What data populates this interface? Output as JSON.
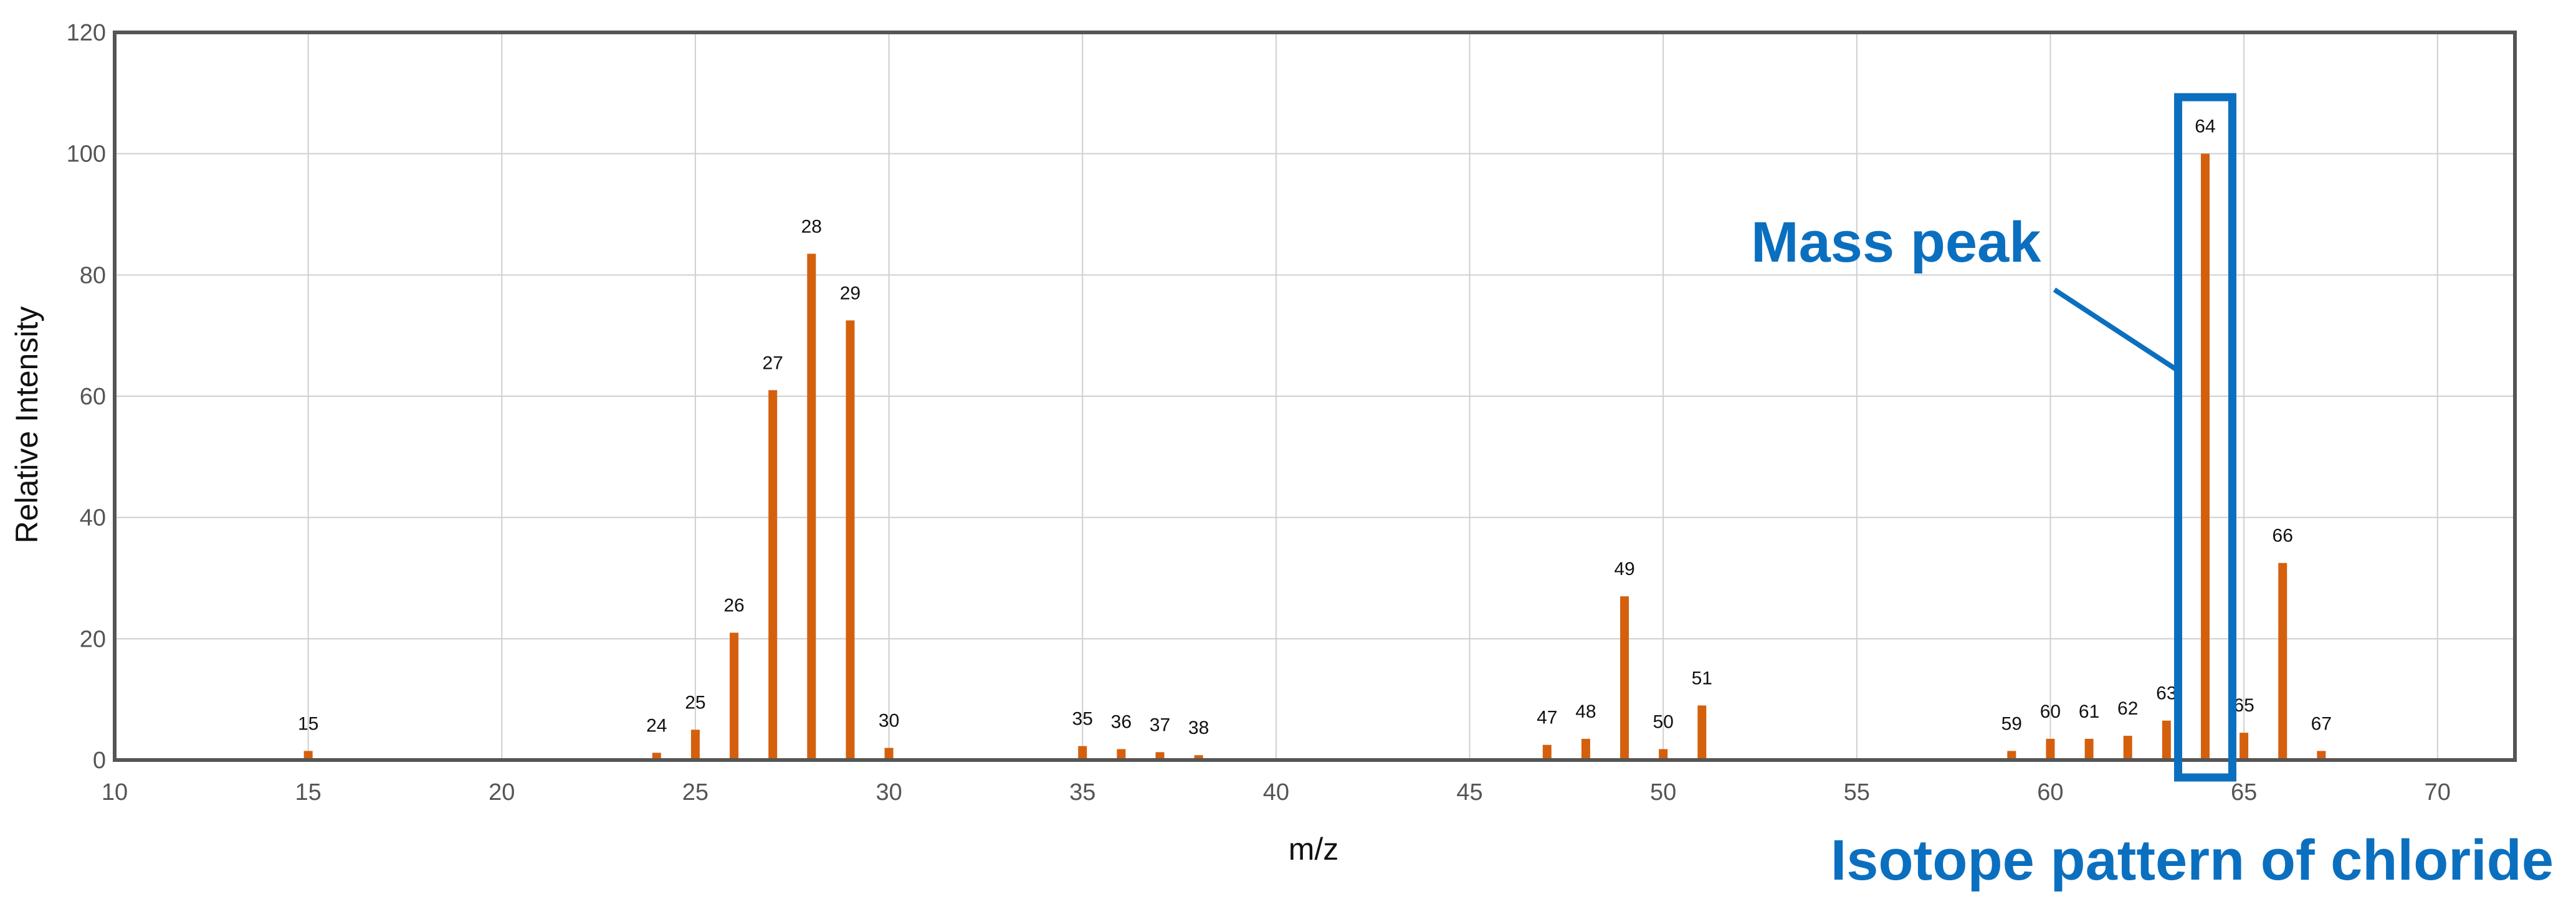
{
  "chart_data": {
    "type": "bar",
    "xlabel": "m/z",
    "ylabel": "Relative Intensity",
    "xlim": [
      10,
      72
    ],
    "ylim": [
      0,
      120
    ],
    "xticks": [
      10,
      15,
      20,
      25,
      30,
      35,
      40,
      45,
      50,
      55,
      60,
      65,
      70
    ],
    "yticks": [
      0,
      20,
      40,
      60,
      80,
      100,
      120
    ],
    "grid": true,
    "bar_color": "#d4600e",
    "points": [
      {
        "mz": 15,
        "intensity": 1.5
      },
      {
        "mz": 24,
        "intensity": 1.2
      },
      {
        "mz": 25,
        "intensity": 5
      },
      {
        "mz": 26,
        "intensity": 21
      },
      {
        "mz": 27,
        "intensity": 61
      },
      {
        "mz": 28,
        "intensity": 83.5
      },
      {
        "mz": 29,
        "intensity": 72.5
      },
      {
        "mz": 30,
        "intensity": 2
      },
      {
        "mz": 35,
        "intensity": 2.3
      },
      {
        "mz": 36,
        "intensity": 1.8
      },
      {
        "mz": 37,
        "intensity": 1.3
      },
      {
        "mz": 38,
        "intensity": 0.8
      },
      {
        "mz": 47,
        "intensity": 2.5
      },
      {
        "mz": 48,
        "intensity": 3.5
      },
      {
        "mz": 49,
        "intensity": 27
      },
      {
        "mz": 50,
        "intensity": 1.8
      },
      {
        "mz": 51,
        "intensity": 9
      },
      {
        "mz": 59,
        "intensity": 1.5
      },
      {
        "mz": 60,
        "intensity": 3.5
      },
      {
        "mz": 61,
        "intensity": 3.5
      },
      {
        "mz": 62,
        "intensity": 4
      },
      {
        "mz": 63,
        "intensity": 6.5
      },
      {
        "mz": 64,
        "intensity": 100
      },
      {
        "mz": 65,
        "intensity": 4.5
      },
      {
        "mz": 66,
        "intensity": 32.5
      },
      {
        "mz": 67,
        "intensity": 1.5
      }
    ],
    "annotations": {
      "mass_peak_label": "Mass peak",
      "isotope_label": "Isotope pattern of chloride",
      "highlight_color": "#0b6fbf",
      "highlight_range_mz": [
        63.3,
        64.7
      ]
    }
  }
}
